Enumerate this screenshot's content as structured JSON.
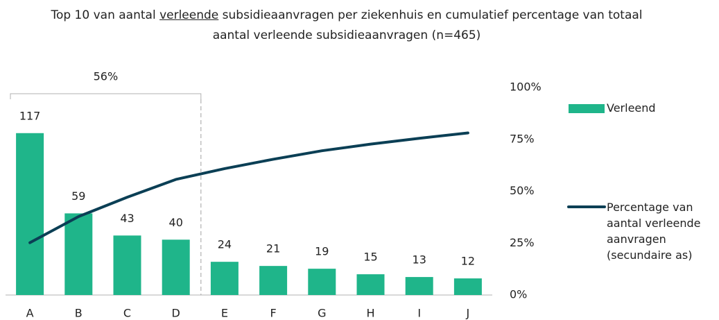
{
  "chart_data": {
    "type": "bar_line",
    "title": [
      "Top 10 van aantal ",
      "verleende",
      " subsidieaanvragen per ziekenhuis en cumulatief percentage van totaal aantal verleende subsidieaanvragen (n=465)"
    ],
    "categories": [
      "A",
      "B",
      "C",
      "D",
      "E",
      "F",
      "G",
      "H",
      "I",
      "J"
    ],
    "series": [
      {
        "name": "Verleend",
        "color": "#1fb58a",
        "type": "bar",
        "values": [
          117,
          59,
          43,
          40,
          24,
          21,
          19,
          15,
          13,
          12
        ]
      },
      {
        "name": "Percentage van aantal verleende aanvragen (secundaire as)",
        "color": "#0b3f55",
        "type": "line",
        "axis": "y2",
        "values": [
          25.2,
          37.8,
          47.1,
          55.7,
          60.9,
          65.4,
          69.5,
          72.7,
          75.5,
          78.1
        ]
      }
    ],
    "ylim": [
      0,
      150
    ],
    "y2lim": [
      0,
      100
    ],
    "y2ticks": [
      {
        "value": 0,
        "label": "0%"
      },
      {
        "value": 25,
        "label": "25%"
      },
      {
        "value": 50,
        "label": "50%"
      },
      {
        "value": 75,
        "label": "75%"
      },
      {
        "value": 100,
        "label": "100%"
      }
    ],
    "annotation": "56%",
    "legend": "right"
  }
}
